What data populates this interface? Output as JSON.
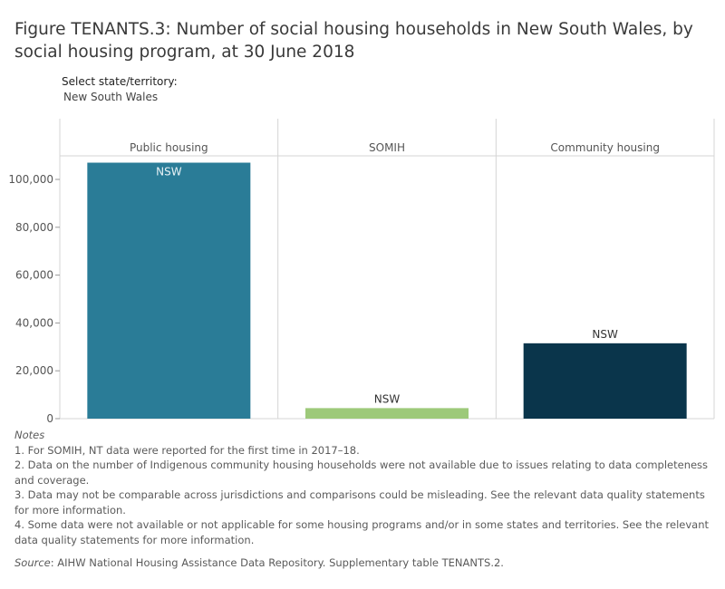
{
  "title": "Figure TENANTS.3: Number of social housing households in New South Wales, by social housing program, at 30 June 2018",
  "filter": {
    "label": "Select state/territory:",
    "value": "New South Wales"
  },
  "chart_data": {
    "type": "bar",
    "categories": [
      "Public housing",
      "SOMIH",
      "Community housing"
    ],
    "series": [
      {
        "values": [
          107000,
          4400,
          31500
        ],
        "labels": [
          "NSW",
          "NSW",
          "NSW"
        ],
        "colors": [
          "#2a7c97",
          "#9dc97a",
          "#0a354b"
        ]
      }
    ],
    "xlabel": "",
    "ylabel": "",
    "ylim": [
      0,
      110000
    ],
    "yticks": [
      0,
      20000,
      40000,
      60000,
      80000,
      100000
    ],
    "ytick_labels": [
      "0",
      "20,000",
      "40,000",
      "60,000",
      "80,000",
      "100,000"
    ],
    "grid": false,
    "legend": "none"
  },
  "notes": {
    "heading": "Notes",
    "items": [
      "1. For SOMIH, NT data were reported for the first time in 2017–18.",
      "2. Data on the number of Indigenous community housing households were not available due to issues relating to data completeness and coverage.",
      "3. Data may not be comparable across jurisdictions and comparisons could be misleading. See the relevant data quality statements for more information.",
      "4. Some data were not available or not applicable for some housing programs and/or in some states and territories. See the relevant data quality statements for more information."
    ],
    "source_label": "Source",
    "source_text": ": AIHW National Housing Assistance Data Repository. Supplementary table TENANTS.2."
  }
}
